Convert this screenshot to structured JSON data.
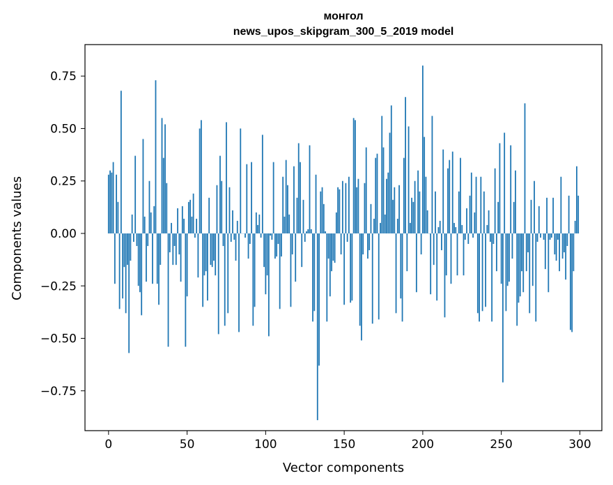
{
  "chart_data": {
    "type": "bar",
    "title": "монгол",
    "subtitle": "news_upos_skipgram_300_5_2019 model",
    "xlabel": "Vector components",
    "ylabel": "Components values",
    "xlim": [
      -15,
      314
    ],
    "ylim": [
      -0.94,
      0.9
    ],
    "xticks": [
      0,
      50,
      100,
      150,
      200,
      250,
      300
    ],
    "yticks": [
      0.75,
      0.5,
      0.25,
      0.0,
      -0.25,
      -0.5,
      -0.75
    ],
    "ytick_labels": [
      "0.75",
      "0.50",
      "0.25",
      "0.00",
      "−0.25",
      "−0.50",
      "−0.75"
    ],
    "xtick_labels": [
      "0",
      "50",
      "100",
      "150",
      "200",
      "250",
      "300"
    ],
    "grid": false,
    "bar_color": "#1f77b4",
    "values": [
      0.28,
      0.3,
      0.29,
      0.34,
      -0.24,
      0.28,
      0.15,
      -0.36,
      0.68,
      -0.31,
      -0.16,
      -0.38,
      -0.15,
      -0.57,
      -0.13,
      0.09,
      -0.04,
      0.37,
      -0.06,
      -0.25,
      -0.28,
      -0.39,
      0.45,
      0.08,
      -0.23,
      -0.06,
      0.25,
      0.1,
      -0.24,
      0.13,
      0.73,
      -0.24,
      -0.34,
      -0.15,
      0.55,
      0.36,
      0.52,
      0.24,
      -0.54,
      -0.09,
      0.05,
      -0.15,
      -0.06,
      -0.15,
      0.12,
      -0.1,
      -0.23,
      0.13,
      0.07,
      -0.54,
      -0.3,
      0.15,
      0.16,
      0.08,
      0.19,
      -0.02,
      0.07,
      -0.21,
      0.5,
      0.54,
      -0.35,
      -0.2,
      -0.18,
      -0.32,
      0.17,
      -0.15,
      -0.16,
      -0.13,
      -0.2,
      0.23,
      -0.48,
      0.37,
      0.25,
      -0.06,
      -0.44,
      0.53,
      -0.38,
      0.22,
      -0.04,
      0.11,
      -0.03,
      -0.13,
      0.06,
      -0.47,
      0.5,
      0.0,
      0.0,
      -0.02,
      0.33,
      -0.12,
      -0.05,
      0.34,
      -0.44,
      -0.35,
      0.1,
      0.04,
      0.09,
      -0.02,
      0.47,
      -0.16,
      -0.29,
      -0.2,
      -0.49,
      -0.01,
      -0.03,
      0.34,
      -0.12,
      -0.11,
      -0.05,
      -0.36,
      -0.11,
      0.27,
      0.08,
      0.35,
      0.23,
      0.09,
      -0.35,
      -0.1,
      0.32,
      -0.23,
      0.17,
      0.43,
      0.34,
      -0.16,
      0.16,
      -0.04,
      0.01,
      0.02,
      0.42,
      0.02,
      -0.42,
      -0.37,
      0.28,
      -0.89,
      -0.63,
      0.2,
      0.22,
      0.14,
      0.01,
      -0.42,
      -0.12,
      -0.3,
      -0.18,
      -0.13,
      -0.14,
      0.1,
      0.22,
      0.21,
      -0.1,
      0.25,
      -0.34,
      0.24,
      -0.04,
      0.27,
      -0.33,
      -0.32,
      0.55,
      0.54,
      0.22,
      0.26,
      -0.44,
      -0.51,
      -0.1,
      0.24,
      0.41,
      -0.12,
      -0.08,
      0.14,
      -0.43,
      0.07,
      0.36,
      0.38,
      -0.41,
      0.05,
      0.56,
      0.41,
      0.09,
      0.26,
      0.29,
      0.48,
      0.61,
      0.16,
      0.22,
      -0.38,
      0.07,
      0.23,
      -0.31,
      -0.42,
      0.36,
      0.65,
      -0.18,
      0.51,
      0.05,
      0.17,
      0.15,
      0.25,
      -0.28,
      0.3,
      0.2,
      -0.1,
      0.8,
      0.46,
      0.27,
      0.11,
      0.0,
      -0.29,
      0.56,
      -0.15,
      0.2,
      -0.32,
      0.03,
      0.06,
      -0.08,
      0.4,
      -0.4,
      -0.2,
      0.31,
      0.35,
      -0.24,
      0.39,
      0.05,
      0.03,
      -0.2,
      0.2,
      0.36,
      0.04,
      -0.2,
      -0.03,
      0.12,
      -0.05,
      0.18,
      0.29,
      -0.02,
      0.1,
      0.27,
      -0.38,
      -0.42,
      0.27,
      -0.37,
      0.2,
      -0.35,
      0.04,
      0.11,
      -0.04,
      -0.42,
      -0.05,
      0.31,
      -0.18,
      0.15,
      0.43,
      -0.24,
      -0.71,
      0.48,
      -0.37,
      -0.25,
      -0.23,
      0.42,
      -0.12,
      0.15,
      0.3,
      -0.44,
      -0.33,
      -0.3,
      -0.18,
      -0.28,
      0.62,
      -0.18,
      -0.09,
      -0.38,
      0.16,
      -0.25,
      0.25,
      -0.42,
      -0.04,
      0.13,
      -0.02,
      0.0,
      -0.03,
      -0.17,
      0.17,
      -0.28,
      -0.03,
      -0.02,
      0.17,
      -0.1,
      -0.13,
      -0.03,
      -0.18,
      0.27,
      -0.12,
      -0.09,
      -0.22,
      -0.06,
      0.18,
      -0.46,
      -0.47,
      -0.18,
      0.06,
      0.32,
      0.18
    ]
  }
}
